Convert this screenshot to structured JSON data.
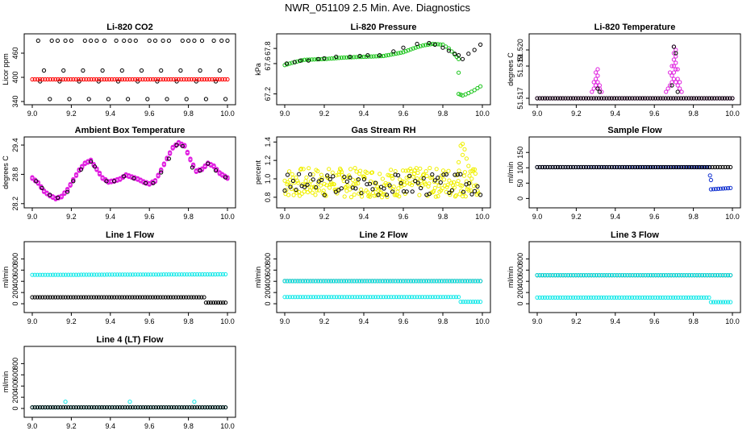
{
  "figure": {
    "title": "NWR_051109  2.5 Min. Ave. Diagnostics"
  },
  "colors": {
    "black": "#000000",
    "red": "#ff0000",
    "green": "#19c419",
    "magenta": "#e020e0",
    "yellow": "#f0f000",
    "cyan": "#10e8e8",
    "blue": "#1030d0"
  },
  "chart_data": [
    {
      "id": "co2",
      "type": "scatter",
      "title": "Li-820 CO2",
      "ylabel": "Licor ppm",
      "xlim": [
        9.0,
        10.0
      ],
      "ylim": [
        340,
        500
      ],
      "xticks": [
        "9.0",
        "9.2",
        "9.4",
        "9.6",
        "9.8",
        "10.0"
      ],
      "yticks": [
        "340",
        "400",
        "460"
      ],
      "series": [
        {
          "name": "ref-scatter",
          "color": "black",
          "mode": "scatter",
          "x": [
            9.03,
            9.1,
            9.13,
            9.17,
            9.2,
            9.27,
            9.3,
            9.33,
            9.37,
            9.43,
            9.47,
            9.5,
            9.53,
            9.6,
            9.63,
            9.67,
            9.7,
            9.77,
            9.8,
            9.83,
            9.87,
            9.93,
            9.97,
            10.0,
            9.06,
            9.16,
            9.26,
            9.36,
            9.46,
            9.56,
            9.66,
            9.76,
            9.86,
            9.96,
            9.04,
            9.14,
            9.24,
            9.34,
            9.44,
            9.54,
            9.64,
            9.74,
            9.84,
            9.94,
            9.09,
            9.19,
            9.29,
            9.39,
            9.49,
            9.59,
            9.69,
            9.79,
            9.89,
            9.99
          ],
          "y": [
            491,
            491,
            491,
            491,
            491,
            491,
            491,
            491,
            491,
            491,
            491,
            491,
            491,
            491,
            491,
            491,
            491,
            491,
            491,
            491,
            491,
            491,
            491,
            491,
            417,
            417,
            417,
            417,
            417,
            417,
            417,
            417,
            417,
            417,
            390,
            390,
            390,
            390,
            390,
            390,
            390,
            390,
            390,
            390,
            346,
            346,
            346,
            346,
            346,
            346,
            346,
            346,
            346,
            346
          ]
        },
        {
          "name": "sample-line",
          "color": "red",
          "mode": "band",
          "x": [
            9.0,
            10.0
          ],
          "y": [
            395,
            395
          ]
        }
      ]
    },
    {
      "id": "pressure",
      "type": "scatter",
      "title": "Li-820 Pressure",
      "ylabel": "kPa",
      "xlim": [
        9.0,
        10.0
      ],
      "ylim": [
        67.1,
        67.95
      ],
      "xticks": [
        "9.0",
        "9.2",
        "9.4",
        "9.6",
        "9.8",
        "10.0"
      ],
      "yticks": [
        "67.2",
        "67.6",
        "67.8"
      ],
      "series": [
        {
          "name": "sample",
          "color": "green",
          "mode": "band",
          "x": [
            9.0,
            9.05,
            9.1,
            9.2,
            9.3,
            9.4,
            9.5,
            9.6,
            9.65,
            9.7,
            9.75,
            9.8,
            9.83,
            9.86,
            9.88
          ],
          "y": [
            67.58,
            67.62,
            67.65,
            67.66,
            67.68,
            67.69,
            67.7,
            67.75,
            67.8,
            67.84,
            67.86,
            67.85,
            67.8,
            67.72,
            67.66
          ]
        },
        {
          "name": "sample-low",
          "color": "green",
          "mode": "band",
          "x": [
            9.88,
            9.9,
            9.93,
            9.96,
            9.99
          ],
          "y": [
            67.2,
            67.18,
            67.21,
            67.25,
            67.3
          ]
        },
        {
          "name": "sample-outlier",
          "color": "green",
          "mode": "scatter",
          "x": [
            9.88
          ],
          "y": [
            67.48
          ]
        },
        {
          "name": "ref",
          "color": "black",
          "mode": "scatter",
          "x": [
            9.01,
            9.05,
            9.08,
            9.12,
            9.17,
            9.2,
            9.26,
            9.33,
            9.38,
            9.42,
            9.48,
            9.55,
            9.6,
            9.67,
            9.73,
            9.76,
            9.8,
            9.83,
            9.86,
            9.88,
            9.9,
            9.93,
            9.96,
            9.99
          ],
          "y": [
            67.6,
            67.62,
            67.64,
            67.64,
            67.66,
            67.67,
            67.69,
            67.69,
            67.7,
            67.71,
            67.71,
            67.76,
            67.81,
            67.86,
            67.87,
            67.85,
            67.81,
            67.77,
            67.73,
            67.71,
            67.66,
            67.73,
            67.78,
            67.85
          ]
        }
      ]
    },
    {
      "id": "li820temp",
      "type": "scatter",
      "title": "Li-820 Temperature",
      "ylabel": "degrees C",
      "xlim": [
        9.0,
        10.0
      ],
      "ylim": [
        51.5168,
        51.5208
      ],
      "xticks": [
        "9.0",
        "9.2",
        "9.4",
        "9.6",
        "9.8",
        "10.0"
      ],
      "yticks": [
        "51.517",
        "51.519",
        "51.520"
      ],
      "series": [
        {
          "name": "base",
          "color": "magenta",
          "mode": "band",
          "x": [
            9.0,
            10.0
          ],
          "y": [
            51.517,
            51.517
          ]
        },
        {
          "name": "base-ref",
          "color": "black",
          "mode": "band",
          "x": [
            9.0,
            10.0
          ],
          "y": [
            51.517,
            51.517
          ]
        },
        {
          "name": "spikes",
          "color": "magenta",
          "mode": "scatter",
          "x": [
            9.28,
            9.29,
            9.3,
            9.31,
            9.32,
            9.33,
            9.3,
            9.31,
            9.29,
            9.32,
            9.3,
            9.31,
            9.66,
            9.67,
            9.68,
            9.69,
            9.7,
            9.71,
            9.72,
            9.73,
            9.74,
            9.7,
            9.71,
            9.69,
            9.72,
            9.7,
            9.71,
            9.68,
            9.73,
            9.7,
            9.71,
            9.7,
            9.69,
            9.72,
            9.71,
            9.7
          ],
          "y": [
            51.5174,
            51.5176,
            51.5178,
            51.518,
            51.5176,
            51.5174,
            51.5186,
            51.5184,
            51.518,
            51.5178,
            51.5182,
            51.5188,
            51.5174,
            51.5176,
            51.5178,
            51.518,
            51.5182,
            51.518,
            51.5178,
            51.5176,
            51.5174,
            51.5186,
            51.5188,
            51.5184,
            51.5182,
            51.519,
            51.5192,
            51.5186,
            51.518,
            51.5194,
            51.5196,
            51.5198,
            51.519,
            51.5188,
            51.52,
            51.5202
          ]
        },
        {
          "name": "spikes-ref",
          "color": "black",
          "mode": "scatter",
          "x": [
            9.31,
            9.32,
            9.7,
            9.71,
            9.69,
            9.72
          ],
          "y": [
            51.5176,
            51.5174,
            51.5202,
            51.5198,
            51.5178,
            51.5174
          ]
        }
      ]
    },
    {
      "id": "boxtemp",
      "type": "scatter",
      "title": "Ambient Box Temperature",
      "ylabel": "degrees C",
      "xlim": [
        9.0,
        10.0
      ],
      "ylim": [
        28.18,
        29.5
      ],
      "xticks": [
        "9.0",
        "9.2",
        "9.4",
        "9.6",
        "9.8",
        "10.0"
      ],
      "yticks": [
        "28.2",
        "28.8",
        "29.4"
      ],
      "series": [
        {
          "name": "sample",
          "color": "magenta",
          "mode": "curve",
          "x": [
            9.0,
            9.03,
            9.06,
            9.09,
            9.12,
            9.15,
            9.18,
            9.21,
            9.24,
            9.27,
            9.3,
            9.33,
            9.36,
            9.39,
            9.42,
            9.45,
            9.48,
            9.51,
            9.54,
            9.57,
            9.6,
            9.63,
            9.66,
            9.69,
            9.72,
            9.75,
            9.78,
            9.81,
            9.84,
            9.87,
            9.9,
            9.93,
            9.96,
            10.0
          ],
          "y": [
            28.72,
            28.62,
            28.45,
            28.36,
            28.3,
            28.34,
            28.48,
            28.68,
            28.88,
            29.02,
            29.08,
            28.9,
            28.72,
            28.64,
            28.66,
            28.7,
            28.78,
            28.74,
            28.7,
            28.64,
            28.6,
            28.66,
            28.88,
            29.12,
            29.34,
            29.44,
            29.38,
            29.1,
            28.86,
            28.9,
            29.02,
            28.96,
            28.82,
            28.72
          ]
        },
        {
          "name": "ref",
          "color": "black",
          "mode": "scatter",
          "x": [
            9.02,
            9.05,
            9.09,
            9.13,
            9.18,
            9.21,
            9.25,
            9.3,
            9.32,
            9.38,
            9.42,
            9.47,
            9.52,
            9.58,
            9.62,
            9.66,
            9.7,
            9.74,
            9.77,
            9.82,
            9.86,
            9.9,
            9.94,
            9.99
          ],
          "y": [
            28.66,
            28.52,
            28.38,
            28.32,
            28.44,
            28.66,
            28.9,
            29.06,
            28.96,
            28.66,
            28.66,
            28.76,
            28.72,
            28.62,
            28.62,
            28.84,
            29.12,
            29.4,
            29.38,
            28.94,
            28.88,
            29.02,
            28.88,
            28.74
          ]
        }
      ]
    },
    {
      "id": "rh",
      "type": "scatter",
      "title": "Gas Stream RH",
      "ylabel": "percent",
      "xlim": [
        9.0,
        10.0
      ],
      "ylim": [
        0.72,
        1.42
      ],
      "xticks": [
        "9.0",
        "9.2",
        "9.4",
        "9.6",
        "9.8",
        "10.0"
      ],
      "yticks": [
        "0.8",
        "1.0",
        "1.2",
        "1.4"
      ],
      "series": [
        {
          "name": "sample",
          "color": "yellow",
          "mode": "noise",
          "seed": 7,
          "x": [
            9.0,
            9.98
          ],
          "y": [
            0.96,
            0.96
          ],
          "spread": 0.16,
          "count": 260
        },
        {
          "name": "sample-spike",
          "color": "yellow",
          "mode": "scatter",
          "x": [
            9.89,
            9.9,
            9.91,
            9.9,
            9.92,
            9.88,
            9.93,
            9.94
          ],
          "y": [
            1.36,
            1.38,
            1.32,
            1.26,
            1.22,
            1.18,
            1.14,
            1.08
          ]
        },
        {
          "name": "ref",
          "color": "black",
          "mode": "noise",
          "seed": 3,
          "x": [
            9.0,
            9.99
          ],
          "y": [
            0.94,
            0.94
          ],
          "spread": 0.12,
          "count": 70
        }
      ]
    },
    {
      "id": "sampleflow",
      "type": "scatter",
      "title": "Sample Flow",
      "ylabel": "ml/min",
      "xlim": [
        9.0,
        10.0
      ],
      "ylim": [
        -20,
        190
      ],
      "xticks": [
        "9.0",
        "9.2",
        "9.4",
        "9.6",
        "9.8",
        "10.0"
      ],
      "yticks": [
        "0",
        "50",
        "100",
        "150"
      ],
      "series": [
        {
          "name": "sample",
          "color": "blue",
          "mode": "band",
          "x": [
            9.0,
            9.88
          ],
          "y": [
            102,
            102
          ]
        },
        {
          "name": "sample-low",
          "color": "blue",
          "mode": "band",
          "x": [
            9.89,
            9.99
          ],
          "y": [
            30,
            34
          ]
        },
        {
          "name": "sample-drop",
          "color": "blue",
          "mode": "scatter",
          "x": [
            9.885,
            9.89
          ],
          "y": [
            75,
            60
          ]
        },
        {
          "name": "ref",
          "color": "black",
          "mode": "band",
          "x": [
            9.0,
            9.99
          ],
          "y": [
            102,
            102
          ]
        }
      ]
    },
    {
      "id": "line1",
      "type": "scatter",
      "title": "Line 1 Flow",
      "ylabel": "ml/min",
      "xlim": [
        9.0,
        10.0
      ],
      "ylim": [
        -100,
        1050
      ],
      "xticks": [
        "9.0",
        "9.2",
        "9.4",
        "9.6",
        "9.8",
        "10.0"
      ],
      "yticks": [
        "0",
        "200",
        "400",
        "600",
        "800"
      ],
      "series": [
        {
          "name": "sample",
          "color": "cyan",
          "mode": "band",
          "x": [
            9.0,
            9.99
          ],
          "y": [
            515,
            525
          ]
        },
        {
          "name": "ref",
          "color": "black",
          "mode": "band",
          "x": [
            9.0,
            9.88
          ],
          "y": [
            115,
            115
          ]
        },
        {
          "name": "ref-low",
          "color": "black",
          "mode": "band",
          "x": [
            9.89,
            9.99
          ],
          "y": [
            20,
            20
          ]
        }
      ]
    },
    {
      "id": "line2",
      "type": "scatter",
      "title": "Line 2 Flow",
      "ylabel": "ml/min",
      "xlim": [
        9.0,
        10.0
      ],
      "ylim": [
        -100,
        1050
      ],
      "xticks": [
        "9.0",
        "9.2",
        "9.4",
        "9.6",
        "9.8",
        "10.0"
      ],
      "yticks": [
        "0",
        "200",
        "400",
        "600",
        "800"
      ],
      "series": [
        {
          "name": "ref",
          "color": "black",
          "mode": "band",
          "x": [
            9.0,
            9.99
          ],
          "y": [
            405,
            405
          ]
        },
        {
          "name": "sample-high",
          "color": "cyan",
          "mode": "band",
          "x": [
            9.0,
            9.99
          ],
          "y": [
            405,
            405
          ]
        },
        {
          "name": "sample-low",
          "color": "cyan",
          "mode": "band",
          "x": [
            9.0,
            9.88
          ],
          "y": [
            120,
            120
          ]
        },
        {
          "name": "sample-tail",
          "color": "cyan",
          "mode": "band",
          "x": [
            9.89,
            9.99
          ],
          "y": [
            35,
            35
          ]
        }
      ]
    },
    {
      "id": "line3",
      "type": "scatter",
      "title": "Line 3 Flow",
      "ylabel": "ml/min",
      "xlim": [
        9.0,
        10.0
      ],
      "ylim": [
        -100,
        1050
      ],
      "xticks": [
        "9.0",
        "9.2",
        "9.4",
        "9.6",
        "9.8",
        "10.0"
      ],
      "yticks": [
        "0",
        "200",
        "400",
        "600",
        "800"
      ],
      "series": [
        {
          "name": "ref",
          "color": "black",
          "mode": "band",
          "x": [
            9.0,
            9.99
          ],
          "y": [
            510,
            510
          ]
        },
        {
          "name": "sample-high",
          "color": "cyan",
          "mode": "band",
          "x": [
            9.0,
            9.99
          ],
          "y": [
            510,
            510
          ]
        },
        {
          "name": "sample-low",
          "color": "cyan",
          "mode": "band",
          "x": [
            9.0,
            9.88
          ],
          "y": [
            110,
            110
          ]
        },
        {
          "name": "sample-tail",
          "color": "cyan",
          "mode": "band",
          "x": [
            9.89,
            9.99
          ],
          "y": [
            30,
            30
          ]
        }
      ]
    },
    {
      "id": "line4",
      "type": "scatter",
      "title": "Line 4 (LT) Flow",
      "ylabel": "ml/min",
      "xlim": [
        9.0,
        10.0
      ],
      "ylim": [
        -100,
        1050
      ],
      "xticks": [
        "9.0",
        "9.2",
        "9.4",
        "9.6",
        "9.8",
        "10.0"
      ],
      "yticks": [
        "0",
        "200",
        "400",
        "600",
        "800"
      ],
      "series": [
        {
          "name": "sample",
          "color": "cyan",
          "mode": "band",
          "x": [
            9.0,
            9.99
          ],
          "y": [
            20,
            20
          ]
        },
        {
          "name": "ref",
          "color": "black",
          "mode": "band",
          "x": [
            9.0,
            9.99
          ],
          "y": [
            20,
            20
          ]
        },
        {
          "name": "sample-blips",
          "color": "cyan",
          "mode": "scatter",
          "x": [
            9.17,
            9.5,
            9.83
          ],
          "y": [
            120,
            120,
            120
          ]
        }
      ]
    }
  ]
}
